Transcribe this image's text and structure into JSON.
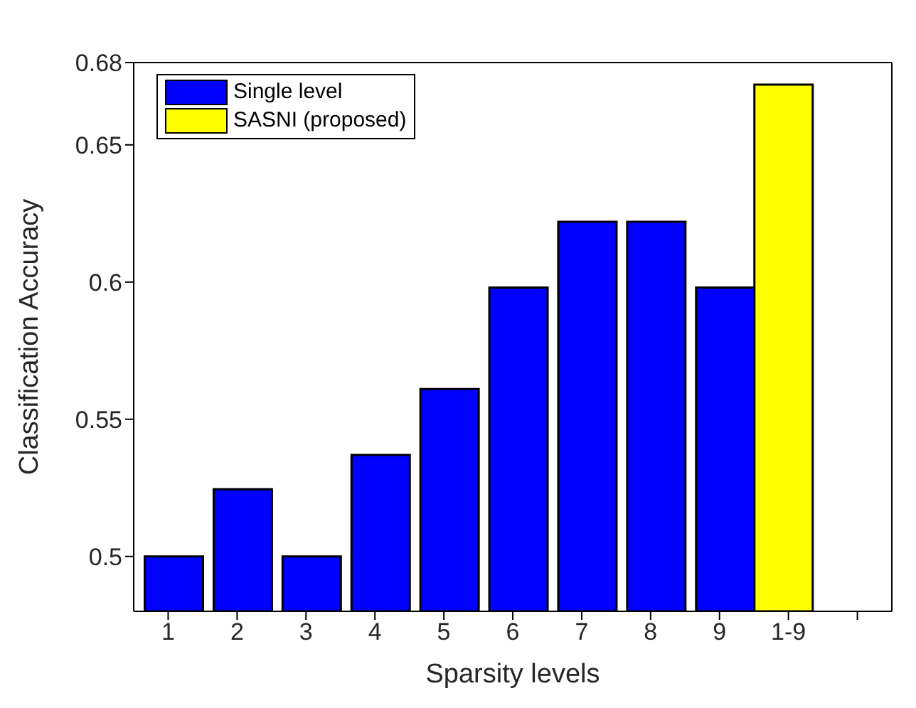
{
  "chart_data": {
    "type": "bar",
    "xlabel": "Sparsity levels",
    "ylabel": "Classification Accuracy",
    "categories": [
      "1",
      "2",
      "3",
      "4",
      "5",
      "6",
      "7",
      "8",
      "9",
      "1-9",
      null
    ],
    "series": [
      {
        "name": "Single level",
        "color": "#0000ff",
        "values": [
          0.5,
          0.5245,
          0.5,
          0.537,
          0.561,
          0.598,
          0.622,
          0.622,
          0.598,
          null,
          null
        ]
      },
      {
        "name": "SASNI (proposed)",
        "color": "#ffff00",
        "values": [
          null,
          null,
          null,
          null,
          null,
          null,
          null,
          null,
          null,
          0.672,
          null
        ]
      }
    ],
    "ylim": [
      0.48,
      0.68
    ],
    "yticks": [
      0.5,
      0.55,
      0.6,
      0.65,
      0.68
    ],
    "grid": false,
    "legend": "top left"
  }
}
